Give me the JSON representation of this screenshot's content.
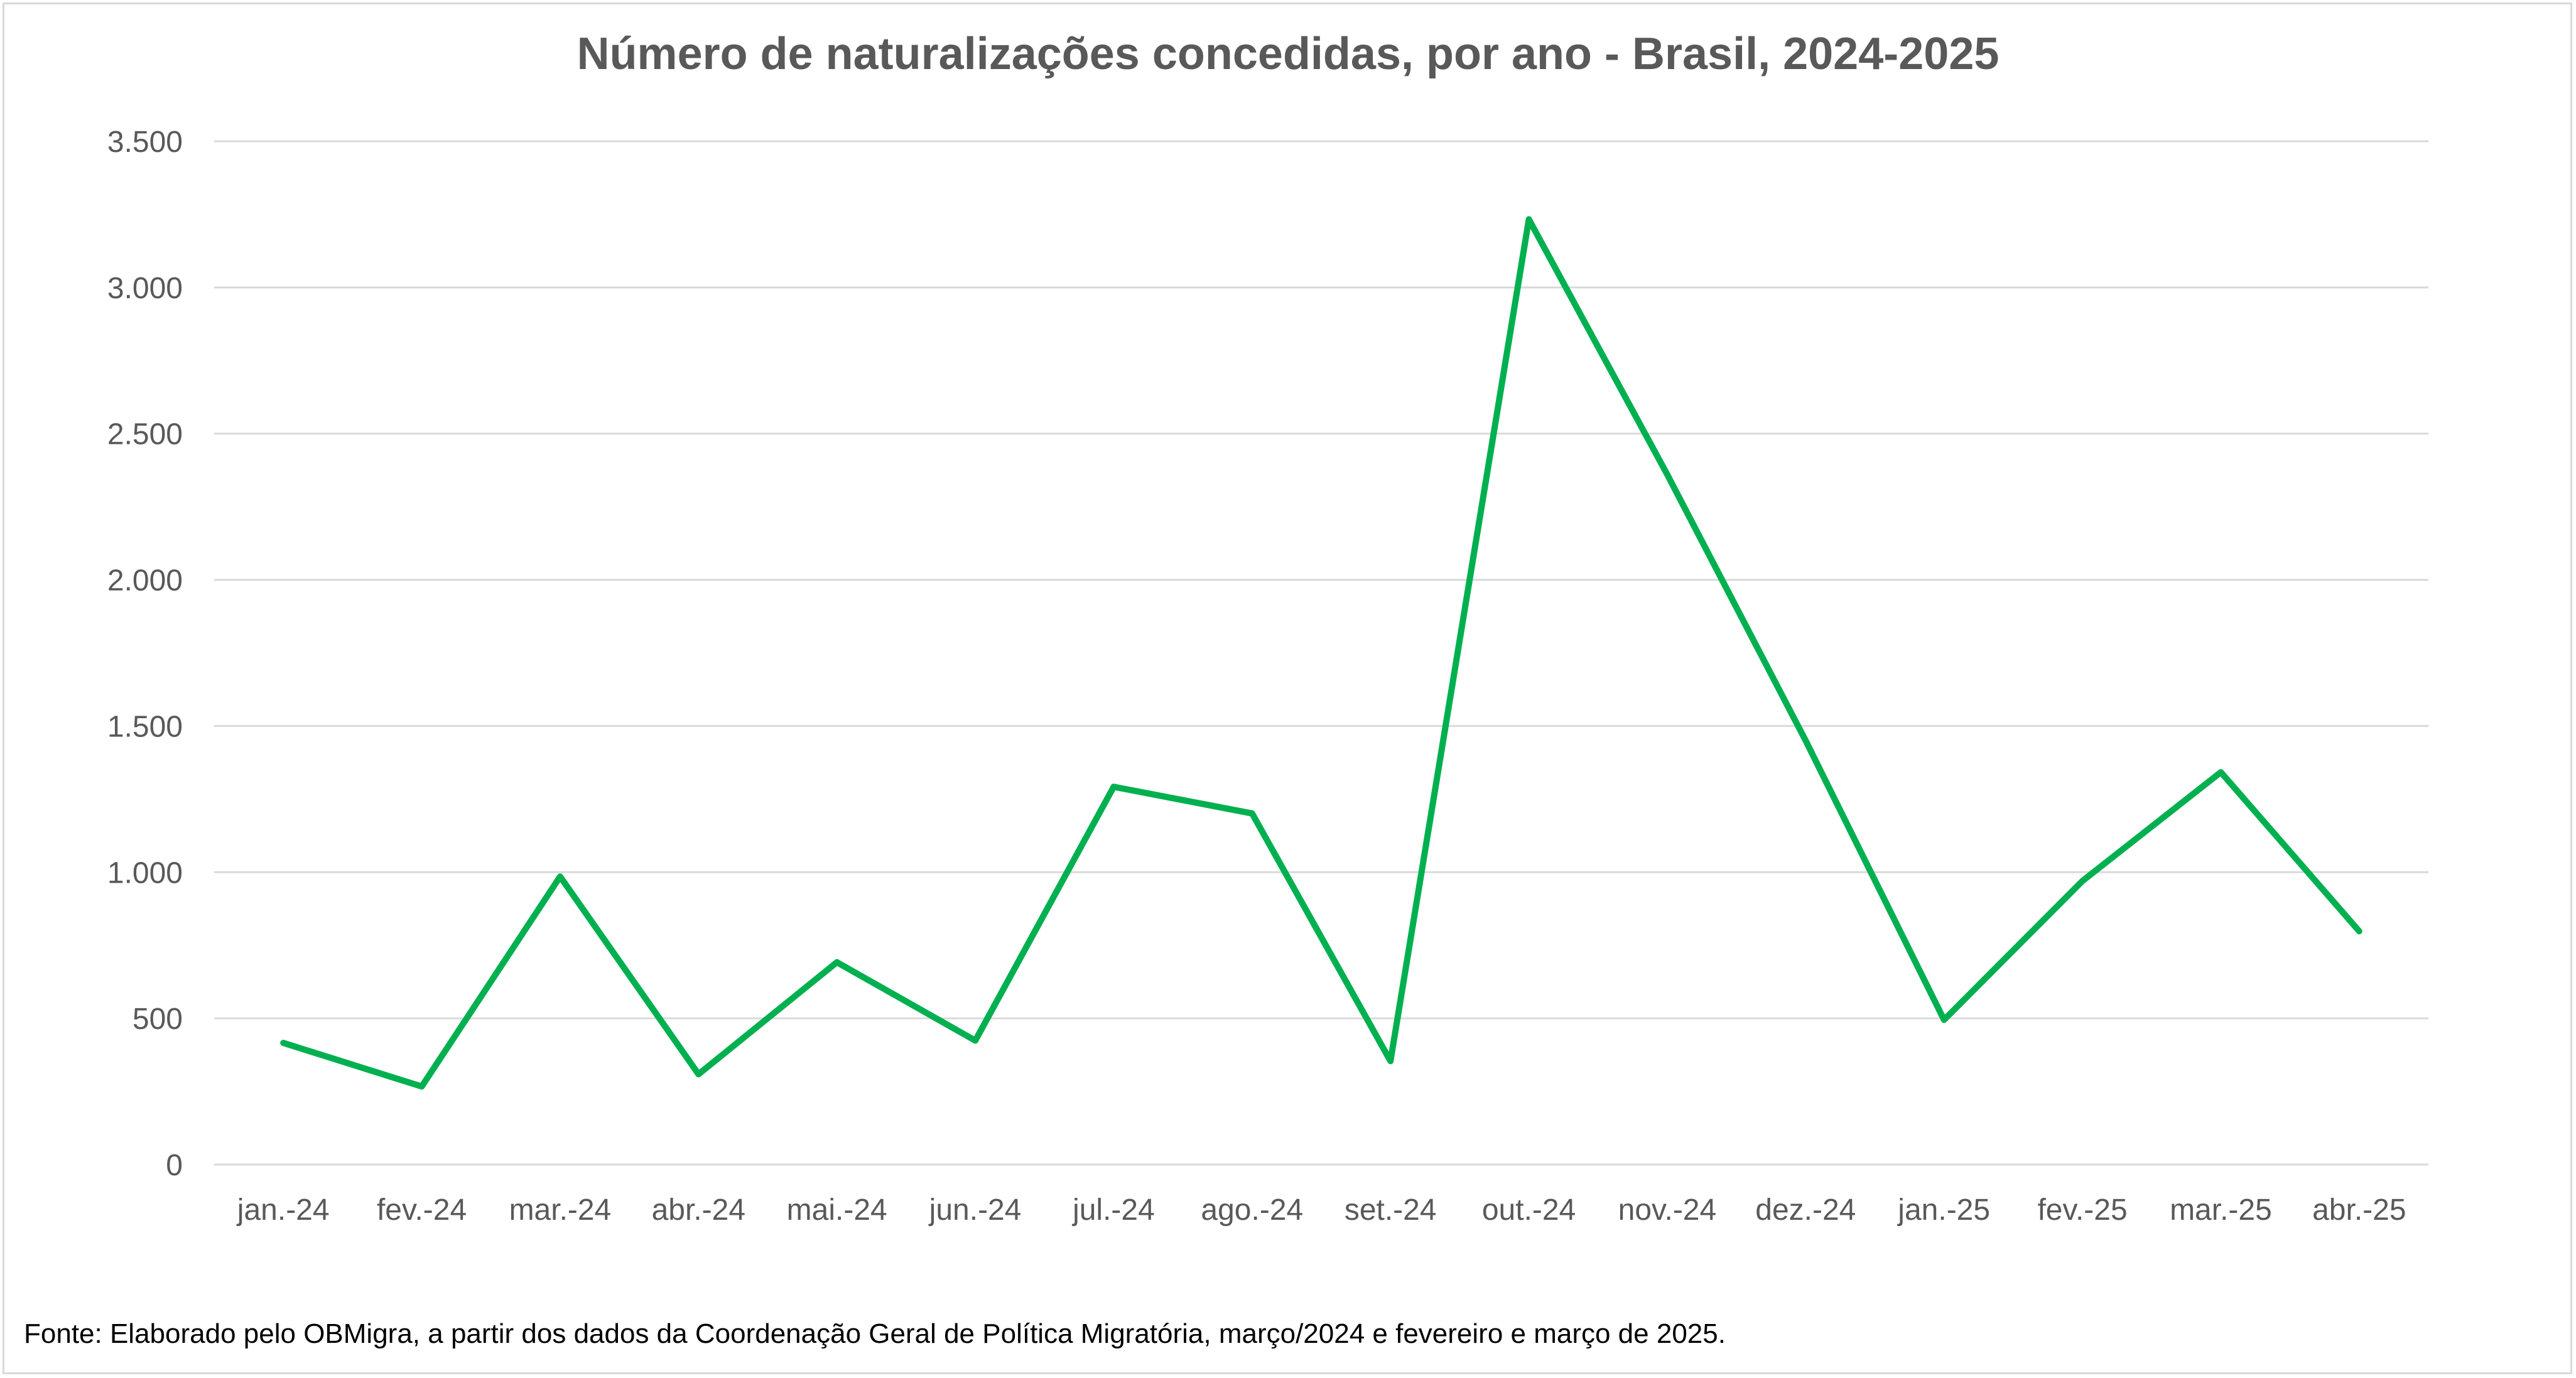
{
  "chart_data": {
    "type": "line",
    "title": "Número de naturalizações concedidas, por ano - Brasil, 2024-2025",
    "xlabel": "",
    "ylabel": "",
    "categories": [
      "jan.-24",
      "fev.-24",
      "mar.-24",
      "abr.-24",
      "mai.-24",
      "jun.-24",
      "jul.-24",
      "ago.-24",
      "set.-24",
      "out.-24",
      "nov.-24",
      "dez.-24",
      "jan.-25",
      "fev.-25",
      "mar.-25",
      "abr.-25"
    ],
    "series": [
      {
        "values": [
          416,
          267,
          985,
          309,
          692,
          424,
          1292,
          1201,
          354,
          3233,
          2360,
          1450,
          495,
          970,
          1342,
          798
        ],
        "color": "#00b050"
      }
    ],
    "ylim": [
      0,
      3500
    ],
    "yticks": [
      0,
      500,
      1000,
      1500,
      2000,
      2500,
      3000,
      3500
    ],
    "ytick_labels": [
      "0",
      "500",
      "1.000",
      "1.500",
      "2.000",
      "2.500",
      "3.000",
      "3.500"
    ],
    "grid": true,
    "legend": "none",
    "source": "Fonte: Elaborado pelo OBMigra, a partir dos dados da Coordenação Geral de Política Migratória, março/2024 e fevereiro e março de 2025."
  }
}
